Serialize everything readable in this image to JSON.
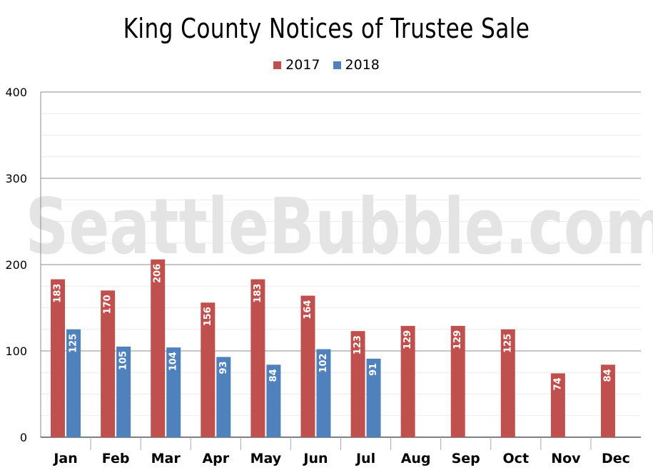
{
  "chart_data": {
    "type": "bar",
    "title": "King County Notices of Trustee Sale",
    "watermark": "SeattleBubble.com",
    "categories": [
      "Jan",
      "Feb",
      "Mar",
      "Apr",
      "May",
      "Jun",
      "Jul",
      "Aug",
      "Sep",
      "Oct",
      "Nov",
      "Dec"
    ],
    "series": [
      {
        "name": "2017",
        "color": "#c0504d",
        "values": [
          183,
          170,
          206,
          156,
          183,
          164,
          123,
          129,
          129,
          125,
          74,
          84
        ]
      },
      {
        "name": "2018",
        "color": "#4f81bd",
        "values": [
          125,
          105,
          104,
          93,
          84,
          102,
          91,
          null,
          null,
          null,
          null,
          null
        ]
      }
    ],
    "ylim": [
      0,
      400
    ],
    "yticks": [
      0,
      100,
      200,
      300,
      400
    ],
    "grid": true,
    "legend_position": "top-center",
    "xlabel": "",
    "ylabel": ""
  }
}
